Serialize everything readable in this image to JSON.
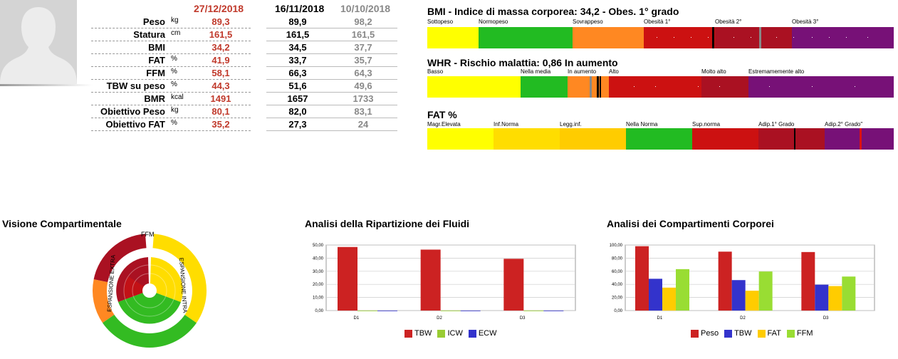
{
  "table": {
    "dates": [
      "27/12/2018",
      "16/11/2018",
      "10/10/2018"
    ],
    "rows": [
      {
        "label": "Peso",
        "unit": "kg",
        "values": [
          "89,3",
          "89,9",
          "98,2"
        ]
      },
      {
        "label": "Statura",
        "unit": "cm",
        "values": [
          "161,5",
          "161,5",
          "161,5"
        ]
      },
      {
        "label": "BMI",
        "unit": "",
        "values": [
          "34,2",
          "34,5",
          "37,7"
        ]
      },
      {
        "label": "FAT",
        "unit": "%",
        "values": [
          "41,9",
          "33,7",
          "35,7"
        ]
      },
      {
        "label": "FFM",
        "unit": "%",
        "values": [
          "58,1",
          "66,3",
          "64,3"
        ]
      },
      {
        "label": "TBW su peso",
        "unit": "%",
        "values": [
          "44,3",
          "51,6",
          "49,6"
        ]
      },
      {
        "label": "BMR",
        "unit": "kcal",
        "values": [
          "1491",
          "1657",
          "1733"
        ]
      },
      {
        "label": "Obiettivo Peso",
        "unit": "kg",
        "values": [
          "80,1",
          "82,0",
          "83,1"
        ]
      },
      {
        "label": "Obiettivo FAT",
        "unit": "%",
        "values": [
          "35,2",
          "27,3",
          "24"
        ]
      }
    ]
  },
  "scales": {
    "bmi": {
      "title": "BMI - Indice di massa corporea: 34,2 - Obes. 1° grado",
      "segments": [
        {
          "label": "Sottopeso",
          "color": "#ffff00"
        },
        {
          "label": "Normopeso",
          "color": "#22bb22"
        },
        {
          "label": "Sovrappeso",
          "color": "#ff8822"
        },
        {
          "label": "Obesità 1°",
          "color": "#cc1111"
        },
        {
          "label": "Obesità 2°",
          "color": "#aa1122"
        },
        {
          "label": "Obesità 3°",
          "color": "#771177"
        }
      ]
    },
    "whr": {
      "title": "WHR - Rischio malattia: 0,86 In aumento",
      "segments": [
        {
          "label": "Basso",
          "color": "#ffff00"
        },
        {
          "label": "Nella media",
          "color": "#22bb22"
        },
        {
          "label": "In aumento",
          "color": "#ff8822"
        },
        {
          "label": "Alto",
          "color": "#cc1111"
        },
        {
          "label": "Molto alto",
          "color": "#aa1122"
        },
        {
          "label": "Estremamemente alto",
          "color": "#771177"
        }
      ]
    },
    "fat": {
      "title": "FAT %",
      "segments": [
        {
          "label": "Magr.Elevata",
          "color": "#ffff00"
        },
        {
          "label": "Inf.Norma",
          "color": "#ffdd00"
        },
        {
          "label": "Legg.inf.",
          "color": "#ffcc00"
        },
        {
          "label": "Nella Norma",
          "color": "#22bb22"
        },
        {
          "label": "Sup.norma",
          "color": "#cc1111"
        },
        {
          "label": "Adip.1° Grado",
          "color": "#aa1122"
        },
        {
          "label": "Adip.2° Grado\"",
          "color": "#771177"
        }
      ]
    }
  },
  "compartmental": {
    "title": "Visione Compartimentale",
    "labels": {
      "top": "FFM",
      "left": "ESPANSIONE EXTRA",
      "right": "ESPANSIONE INTRA"
    }
  },
  "chart_data": [
    {
      "type": "bar",
      "title": "Analisi della Ripartizione dei Fluidi",
      "categories": [
        "D1",
        "D2",
        "D3"
      ],
      "ylim": [
        0,
        50
      ],
      "yticks": [
        "0,00",
        "10,00",
        "20,00",
        "30,00",
        "40,00",
        "50,00"
      ],
      "series": [
        {
          "name": "TBW",
          "color": "#cc2222",
          "values": [
            48.5,
            46.5,
            39.5
          ]
        },
        {
          "name": "ICW",
          "color": "#99cc33",
          "values": [
            0,
            0,
            0
          ]
        },
        {
          "name": "ECW",
          "color": "#3333cc",
          "values": [
            0,
            0,
            0
          ]
        }
      ]
    },
    {
      "type": "bar",
      "title": "Analisi dei Compartimenti Corporei",
      "categories": [
        "D1",
        "D2",
        "D3"
      ],
      "ylim": [
        0,
        100
      ],
      "yticks": [
        "0,00",
        "20,00",
        "40,00",
        "60,00",
        "80,00",
        "100,00"
      ],
      "series": [
        {
          "name": "Peso",
          "color": "#cc2222",
          "values": [
            98.2,
            89.9,
            89.3
          ]
        },
        {
          "name": "TBW",
          "color": "#3333cc",
          "values": [
            48.5,
            46.5,
            39.5
          ]
        },
        {
          "name": "FAT",
          "color": "#ffcc00",
          "values": [
            35.0,
            30.3,
            37.4
          ]
        },
        {
          "name": "FFM",
          "color": "#99dd33",
          "values": [
            63.2,
            59.6,
            51.9
          ]
        }
      ]
    }
  ]
}
